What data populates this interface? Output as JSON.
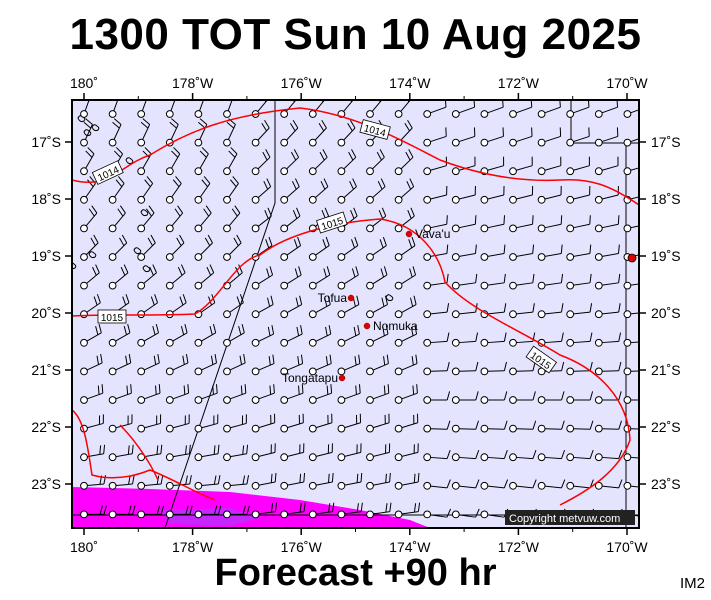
{
  "header": {
    "title": "1300 TOT Sun 10 Aug 2025"
  },
  "footer": {
    "forecast": "Forecast +90 hr",
    "panel_id": "IM2"
  },
  "map": {
    "lon_ticks": [
      "180˚",
      "178˚W",
      "176˚W",
      "174˚W",
      "172˚W",
      "170˚W"
    ],
    "lat_ticks": [
      "17˚S",
      "18˚S",
      "19˚S",
      "20˚S",
      "21˚S",
      "22˚S",
      "23˚S"
    ],
    "colors": {
      "background": "#e4e4ff",
      "isobar": "#ff0000",
      "rain_heavy": "#ff00ff",
      "rain_core": "#a040ff"
    },
    "places": [
      {
        "name": "Vava'u",
        "lon": -174.0,
        "lat": -18.65
      },
      {
        "name": "Tofua",
        "lon": -175.05,
        "lat": -19.75
      },
      {
        "name": "Nomuka",
        "lon": -174.8,
        "lat": -20.25
      },
      {
        "name": "Tongatapu",
        "lon": -175.2,
        "lat": -21.15
      }
    ],
    "isobars": [
      {
        "label": "1014",
        "value_hpa": 1014
      },
      {
        "label": "1014",
        "value_hpa": 1014
      },
      {
        "label": "1015",
        "value_hpa": 1015
      },
      {
        "label": "1015",
        "value_hpa": 1015
      },
      {
        "label": "1015",
        "value_hpa": 1015
      }
    ],
    "copyright": "Copyright metvuw.com"
  }
}
